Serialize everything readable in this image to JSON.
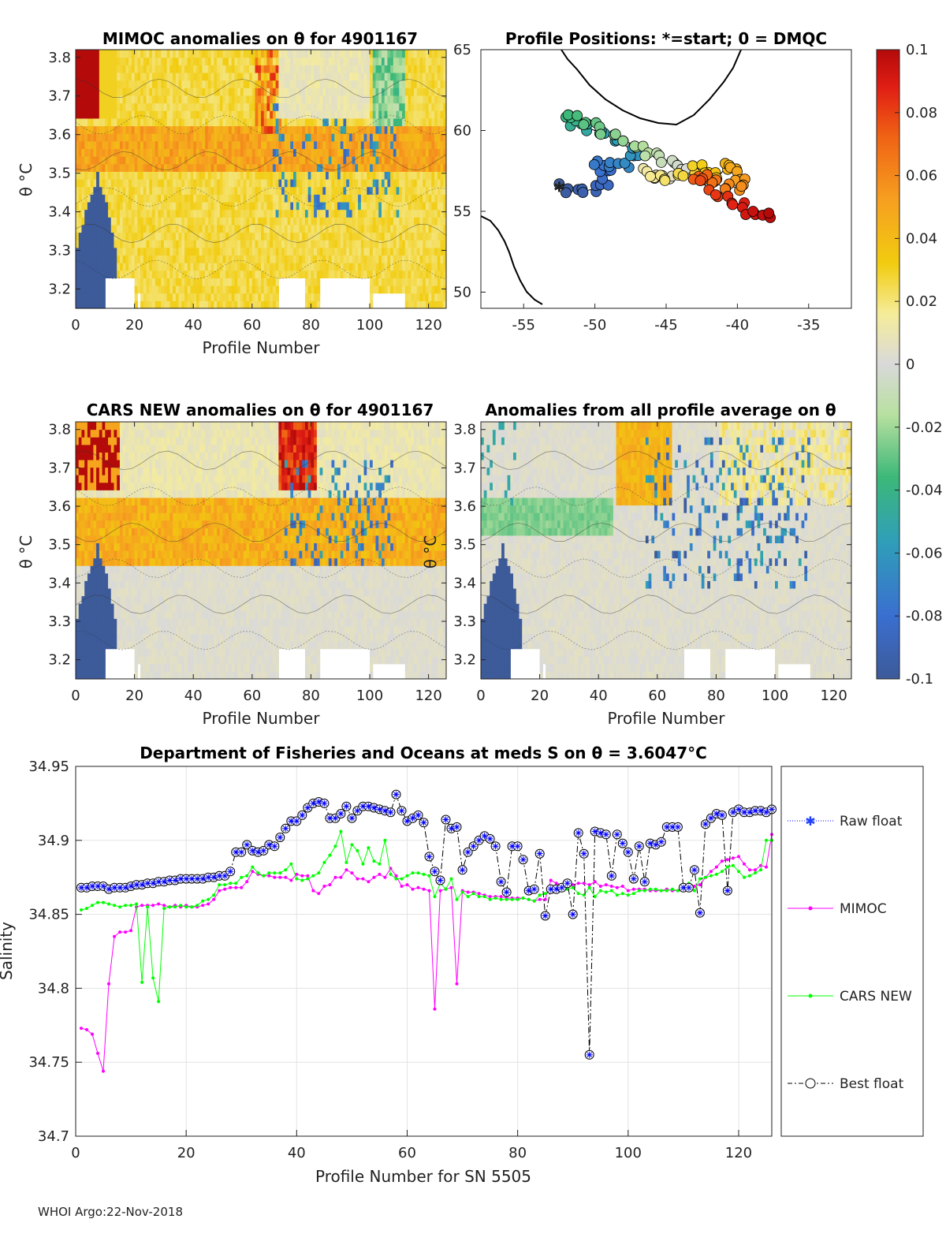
{
  "panels": {
    "mimoc": {
      "title": "MIMOC anomalies on θ  for 4901167",
      "ylabel": "θ °C",
      "xlabel": "Profile Number"
    },
    "positions": {
      "title": "Profile Positions: *=start; 0 = DMQC"
    },
    "cars": {
      "title": "CARS NEW anomalies on θ for 4901167",
      "ylabel": "θ °C",
      "xlabel": "Profile Number"
    },
    "allavg": {
      "title": "Anomalies from all profile average on θ",
      "ylabel": "θ °C",
      "xlabel": "Profile Number"
    }
  },
  "theta_ticks": [
    "3.2",
    "3.3",
    "3.4",
    "3.5",
    "3.6",
    "3.7",
    "3.8"
  ],
  "theta_range": [
    3.15,
    3.82
  ],
  "profile_ticks": [
    "0",
    "20",
    "40",
    "60",
    "80",
    "100",
    "120"
  ],
  "profile_range": [
    0,
    126
  ],
  "map_axes": {
    "xticks": [
      "-55",
      "-50",
      "-45",
      "-40",
      "-35"
    ],
    "xrange": [
      -58,
      -32
    ],
    "yticks": [
      "50",
      "55",
      "60",
      "65"
    ],
    "yrange": [
      49,
      65
    ]
  },
  "colorbar": {
    "ticks": [
      "0.1",
      "0.08",
      "0.06",
      "0.04",
      "0.02",
      "0",
      "-0.02",
      "-0.04",
      "-0.06",
      "-0.08",
      "-0.1"
    ],
    "range": [
      -0.1,
      0.1
    ]
  },
  "chart_data": {
    "type": "line",
    "title": "Department of Fisheries and Oceans at meds S on θ = 3.6047°C",
    "xlabel": "Profile Number for SN 5505",
    "ylabel": "Salinity",
    "xlim": [
      0,
      126
    ],
    "ylim": [
      34.7,
      34.95
    ],
    "xticks": [
      "0",
      "20",
      "40",
      "60",
      "80",
      "100",
      "120"
    ],
    "yticks": [
      "34.7",
      "34.75",
      "34.8",
      "34.85",
      "34.9",
      "34.95"
    ],
    "grid": true,
    "legend_position": "right",
    "series": [
      {
        "name": "Raw float",
        "color": "#0000ff",
        "values": [
          34.868,
          34.868,
          34.869,
          34.869,
          34.869,
          34.867,
          34.868,
          34.868,
          34.868,
          34.869,
          34.87,
          34.87,
          34.871,
          34.871,
          34.872,
          34.872,
          34.873,
          34.873,
          34.874,
          34.874,
          34.874,
          34.874,
          34.874,
          34.875,
          34.875,
          34.876,
          34.876,
          34.879,
          34.892,
          34.892,
          34.897,
          34.893,
          34.892,
          34.893,
          34.897,
          34.896,
          34.902,
          34.908,
          34.913,
          34.913,
          34.917,
          34.922,
          34.925,
          34.926,
          34.925,
          34.915,
          34.915,
          34.918,
          34.923,
          34.915,
          34.92,
          34.923,
          34.923,
          34.922,
          34.921,
          34.92,
          34.919,
          34.931,
          34.92,
          34.913,
          34.915,
          34.917,
          34.912,
          34.889,
          34.879,
          34.873,
          34.914,
          34.908,
          34.909,
          34.88,
          34.892,
          34.896,
          34.9,
          34.903,
          34.901,
          34.896,
          34.872,
          34.865,
          34.896,
          34.896,
          34.887,
          34.866,
          34.867,
          34.891,
          34.849,
          34.867,
          34.867,
          34.868,
          34.871,
          34.85,
          34.905,
          34.891,
          34.755,
          34.906,
          34.905,
          34.904,
          34.876,
          34.904,
          34.898,
          34.892,
          34.874,
          34.896,
          34.872,
          34.898,
          34.897,
          34.899,
          34.909,
          34.909,
          34.909,
          34.868,
          34.868,
          34.88,
          34.851,
          34.911,
          34.915,
          34.918,
          34.917,
          34.866,
          34.919,
          34.921,
          34.919,
          34.919,
          34.92,
          34.92,
          34.919,
          34.921
        ]
      },
      {
        "name": "MIMOC",
        "color": "#ff00ff",
        "values": [
          34.773,
          34.772,
          34.769,
          34.756,
          34.744,
          34.803,
          34.835,
          34.838,
          34.838,
          34.839,
          34.855,
          34.856,
          34.856,
          34.856,
          34.857,
          34.856,
          34.855,
          34.856,
          34.855,
          34.856,
          34.855,
          34.855,
          34.856,
          34.857,
          34.86,
          34.866,
          34.867,
          34.868,
          34.868,
          34.868,
          34.872,
          34.879,
          34.877,
          34.876,
          34.876,
          34.875,
          34.875,
          34.875,
          34.873,
          34.877,
          34.876,
          34.876,
          34.866,
          34.864,
          34.869,
          34.87,
          34.875,
          34.875,
          34.88,
          34.878,
          34.874,
          34.874,
          34.872,
          34.875,
          34.877,
          34.875,
          34.881,
          34.876,
          34.869,
          34.87,
          34.867,
          34.868,
          34.867,
          34.866,
          34.786,
          34.866,
          34.867,
          34.868,
          34.803,
          34.866,
          34.865,
          34.865,
          34.864,
          34.863,
          34.862,
          34.862,
          34.862,
          34.861,
          34.861,
          34.861,
          34.861,
          34.86,
          34.859,
          34.86,
          34.86,
          34.873,
          34.871,
          34.87,
          34.869,
          34.87,
          34.871,
          34.871,
          34.87,
          34.872,
          34.869,
          34.87,
          34.869,
          34.868,
          34.869,
          34.866,
          34.867,
          34.867,
          34.867,
          34.866,
          34.866,
          34.866,
          34.867,
          34.866,
          34.866,
          34.866,
          34.867,
          34.869,
          34.87,
          34.875,
          34.879,
          34.882,
          34.886,
          34.887,
          34.888,
          34.889,
          34.884,
          34.88,
          34.88,
          34.883,
          34.882,
          34.904
        ]
      },
      {
        "name": "CARS NEW",
        "color": "#00ff00",
        "values": [
          34.853,
          34.854,
          34.856,
          34.858,
          34.858,
          34.857,
          34.856,
          34.855,
          34.856,
          34.856,
          34.857,
          34.804,
          34.855,
          34.807,
          34.791,
          34.854,
          34.855,
          34.855,
          34.856,
          34.855,
          34.855,
          34.856,
          34.859,
          34.86,
          34.863,
          34.87,
          34.87,
          34.871,
          34.871,
          34.875,
          34.876,
          34.882,
          34.878,
          34.876,
          34.878,
          34.878,
          34.878,
          34.88,
          34.884,
          34.874,
          34.873,
          34.874,
          34.876,
          34.878,
          34.885,
          34.89,
          34.896,
          34.906,
          34.885,
          34.897,
          34.893,
          34.884,
          34.895,
          34.886,
          34.884,
          34.9,
          34.877,
          34.874,
          34.874,
          34.876,
          34.878,
          34.878,
          34.877,
          34.876,
          34.862,
          34.871,
          34.867,
          34.874,
          34.86,
          34.865,
          34.862,
          34.864,
          34.862,
          34.862,
          34.86,
          34.861,
          34.86,
          34.86,
          34.86,
          34.86,
          34.861,
          34.86,
          34.859,
          34.863,
          34.864,
          34.866,
          34.867,
          34.867,
          34.867,
          34.868,
          34.864,
          34.863,
          34.868,
          34.862,
          34.866,
          34.865,
          34.866,
          34.863,
          34.864,
          34.863,
          34.864,
          34.866,
          34.866,
          34.867,
          34.867,
          34.866,
          34.866,
          34.867,
          34.866,
          34.867,
          34.871,
          34.866,
          34.874,
          34.875,
          34.876,
          34.877,
          34.879,
          34.882,
          34.883,
          34.879,
          34.875,
          34.876,
          34.878,
          34.88,
          34.9,
          34.9
        ]
      },
      {
        "name": "Best float",
        "color": "#000000",
        "values": [
          34.868,
          34.868,
          34.869,
          34.869,
          34.869,
          34.867,
          34.868,
          34.868,
          34.868,
          34.869,
          34.87,
          34.87,
          34.871,
          34.871,
          34.872,
          34.872,
          34.873,
          34.873,
          34.874,
          34.874,
          34.874,
          34.874,
          34.874,
          34.875,
          34.875,
          34.876,
          34.876,
          34.879,
          34.892,
          34.892,
          34.897,
          34.893,
          34.892,
          34.893,
          34.897,
          34.896,
          34.902,
          34.908,
          34.913,
          34.913,
          34.917,
          34.922,
          34.925,
          34.926,
          34.925,
          34.915,
          34.915,
          34.918,
          34.923,
          34.915,
          34.92,
          34.923,
          34.923,
          34.922,
          34.921,
          34.92,
          34.919,
          34.931,
          34.92,
          34.913,
          34.915,
          34.917,
          34.912,
          34.889,
          34.879,
          34.873,
          34.914,
          34.908,
          34.909,
          34.88,
          34.892,
          34.896,
          34.9,
          34.903,
          34.901,
          34.896,
          34.872,
          34.865,
          34.896,
          34.896,
          34.887,
          34.866,
          34.867,
          34.891,
          34.849,
          34.867,
          34.867,
          34.868,
          34.871,
          34.85,
          34.905,
          34.891,
          34.755,
          34.906,
          34.905,
          34.904,
          34.876,
          34.904,
          34.898,
          34.892,
          34.874,
          34.896,
          34.872,
          34.898,
          34.897,
          34.899,
          34.909,
          34.909,
          34.909,
          34.868,
          34.868,
          34.88,
          34.851,
          34.911,
          34.915,
          34.918,
          34.917,
          34.866,
          34.919,
          34.921,
          34.919,
          34.919,
          34.92,
          34.92,
          34.919,
          34.921
        ]
      }
    ]
  },
  "footer": "WHOI Argo:22-Nov-2018"
}
